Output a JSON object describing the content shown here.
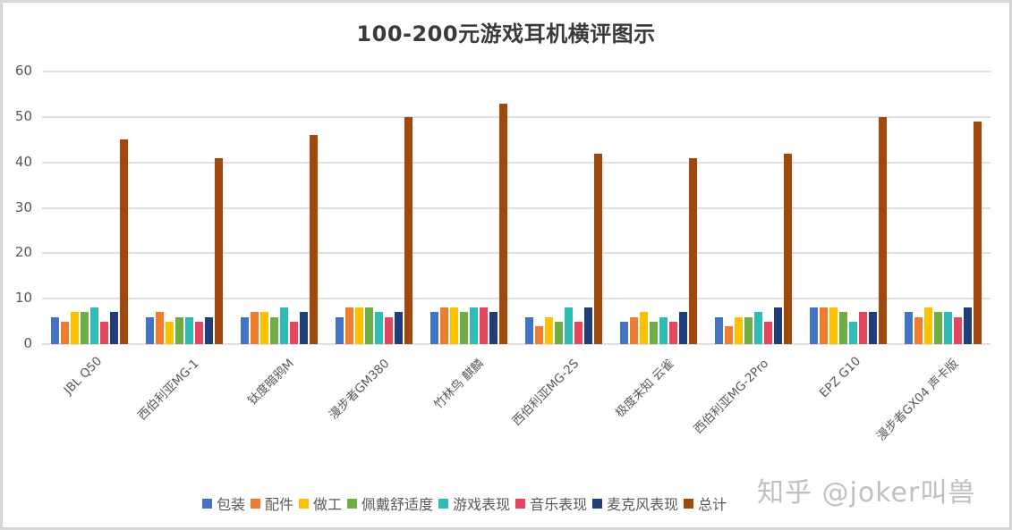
{
  "chart_data": {
    "type": "bar",
    "title": "100-200元游戏耳机横评图示",
    "xlabel": "",
    "ylabel": "",
    "ylim": [
      0,
      60
    ],
    "yticks": [
      0,
      10,
      20,
      30,
      40,
      50,
      60
    ],
    "grid": true,
    "legend_position": "bottom",
    "categories": [
      "JBL Q50",
      "西伯利亚MG-1",
      "钛度暗鸦M",
      "漫步者GM380",
      "竹林鸟 麒麟",
      "西伯利亚MG-2S",
      "极度未知 云雀",
      "西伯利亚MG-2Pro",
      "EPZ G10",
      "漫步者GX04 声卡版"
    ],
    "series": [
      {
        "name": "包装",
        "color": "#4472c4",
        "values": [
          6,
          6,
          6,
          6,
          7,
          6,
          5,
          6,
          8,
          7
        ]
      },
      {
        "name": "配件",
        "color": "#ed7d31",
        "values": [
          5,
          7,
          7,
          8,
          8,
          4,
          6,
          4,
          8,
          6
        ]
      },
      {
        "name": "做工",
        "color": "#ffc000",
        "values": [
          7,
          5,
          7,
          8,
          8,
          6,
          7,
          6,
          8,
          8
        ]
      },
      {
        "name": "佩戴舒适度",
        "color": "#70ad47",
        "values": [
          7,
          6,
          6,
          8,
          7,
          5,
          5,
          6,
          7,
          7
        ]
      },
      {
        "name": "游戏表现",
        "color": "#2ebcb4",
        "values": [
          8,
          6,
          8,
          7,
          8,
          8,
          6,
          7,
          5,
          7
        ]
      },
      {
        "name": "音乐表现",
        "color": "#e4455f",
        "values": [
          5,
          5,
          5,
          6,
          8,
          5,
          5,
          5,
          7,
          6
        ]
      },
      {
        "name": "麦克风表现",
        "color": "#203f7a",
        "values": [
          7,
          6,
          7,
          7,
          7,
          8,
          7,
          8,
          7,
          8
        ]
      },
      {
        "name": "总计",
        "color": "#9e4a0e",
        "values": [
          45,
          41,
          46,
          50,
          53,
          42,
          41,
          42,
          50,
          49
        ]
      }
    ]
  },
  "watermark": "知乎 @joker叫兽"
}
